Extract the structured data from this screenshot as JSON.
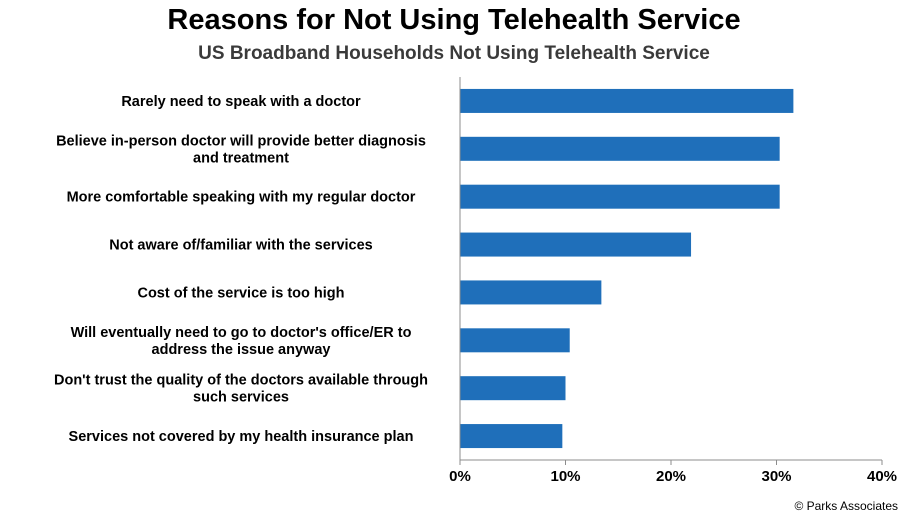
{
  "chart_data": {
    "type": "bar",
    "orientation": "horizontal",
    "title": "Reasons for Not Using Telehealth Service",
    "subtitle": "US Broadband Households Not Using Telehealth Service",
    "categories": [
      [
        "Rarely need to speak with a doctor"
      ],
      [
        "Believe in-person doctor will provide better diagnosis",
        "and treatment"
      ],
      [
        "More comfortable speaking with my regular doctor"
      ],
      [
        "Not aware of/familiar with the services"
      ],
      [
        "Cost of the service is too high"
      ],
      [
        "Will eventually need to go to doctor's office/ER to",
        "address the issue anyway"
      ],
      [
        "Don't trust the quality of the doctors available through",
        "such services"
      ],
      [
        "Services not covered by my health insurance plan"
      ]
    ],
    "values": [
      31.6,
      30.3,
      30.3,
      21.9,
      13.4,
      10.4,
      10.0,
      9.7
    ],
    "xlim": [
      0,
      40
    ],
    "x_ticks": [
      "0%",
      "10%",
      "20%",
      "30%",
      "40%"
    ],
    "bar_color": "#1f6fba",
    "grid": false
  },
  "source": "© Parks Associates"
}
